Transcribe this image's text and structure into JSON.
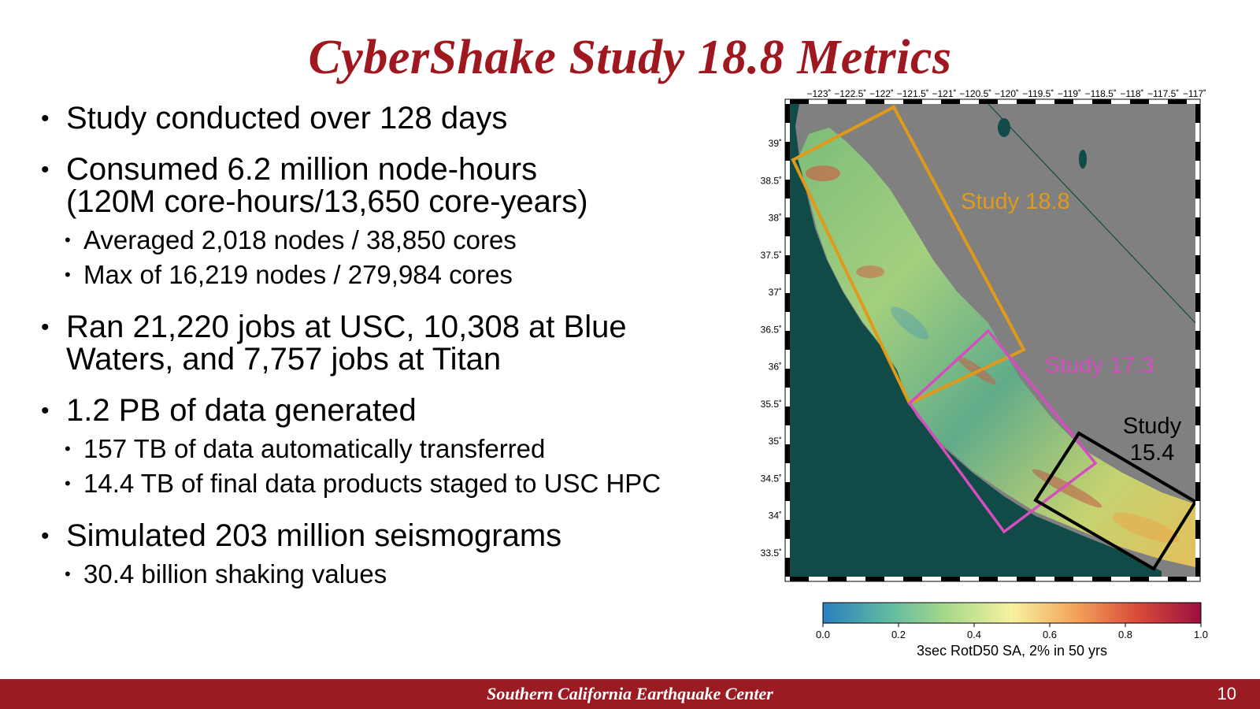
{
  "slide": {
    "title": "CyberShake Study 18.8 Metrics",
    "page_number": "10",
    "footer": "Southern California Earthquake Center"
  },
  "bullets": [
    {
      "text": "Study conducted over 128 days"
    },
    {
      "text": "Consumed 6.2 million node-hours",
      "text2": "(120M core-hours/13,650 core-years)",
      "sub": [
        "Averaged 2,018 nodes / 38,850 cores",
        "Max of 16,219 nodes / 279,984 cores"
      ]
    },
    {
      "text": "Ran 21,220 jobs at USC, 10,308 at Blue",
      "text2": "Waters, and 7,757 jobs at Titan"
    },
    {
      "text": "1.2 PB of data generated",
      "sub": [
        "157 TB of data automatically transferred",
        "14.4 TB of final data products staged to USC HPC"
      ]
    },
    {
      "text": "Simulated 203 million seismograms",
      "sub": [
        "30.4 billion shaking values"
      ]
    }
  ],
  "map": {
    "lon_ticks": [
      "−123˚",
      "−122.5˚",
      "−122˚",
      "−121.5˚",
      "−121˚",
      "−120.5˚",
      "−120˚",
      "−119.5˚",
      "−119˚",
      "−118.5˚",
      "−118˚",
      "−117.5˚",
      "−117˚"
    ],
    "lat_ticks": [
      "39˚",
      "38.5˚",
      "38˚",
      "37.5˚",
      "37˚",
      "36.5˚",
      "36˚",
      "35.5˚",
      "35˚",
      "34.5˚",
      "34˚",
      "33.5˚"
    ],
    "study_labels": {
      "s188": "Study 18.8",
      "s173": "Study 17.3",
      "s154_line1": "Study",
      "s154_line2": "15.4"
    },
    "colors": {
      "ocean": "#114b47",
      "land_outside": "#808080",
      "s188": "#e09a1a",
      "s173": "#d44ec0",
      "s154": "#000000"
    },
    "colorbar": {
      "ticks": [
        "0.0",
        "0.2",
        "0.4",
        "0.6",
        "0.8",
        "1.0"
      ],
      "label": "3sec RotD50 SA, 2% in 50 yrs",
      "colors": [
        "#2a7fbf",
        "#5fb8a3",
        "#a8d98a",
        "#f6f2a0",
        "#f3a25a",
        "#d94c3a",
        "#9c0f3f"
      ]
    }
  }
}
